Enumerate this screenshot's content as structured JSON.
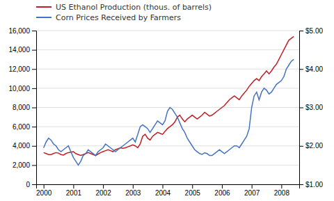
{
  "chart_data": {
    "type": "line",
    "x": [
      2000.0,
      2000.083,
      2000.167,
      2000.25,
      2000.333,
      2000.417,
      2000.5,
      2000.583,
      2000.667,
      2000.75,
      2000.833,
      2000.917,
      2001.0,
      2001.083,
      2001.167,
      2001.25,
      2001.333,
      2001.417,
      2001.5,
      2001.583,
      2001.667,
      2001.75,
      2001.833,
      2001.917,
      2002.0,
      2002.083,
      2002.167,
      2002.25,
      2002.333,
      2002.417,
      2002.5,
      2002.583,
      2002.667,
      2002.75,
      2002.833,
      2002.917,
      2003.0,
      2003.083,
      2003.167,
      2003.25,
      2003.333,
      2003.417,
      2003.5,
      2003.583,
      2003.667,
      2003.75,
      2003.833,
      2003.917,
      2004.0,
      2004.083,
      2004.167,
      2004.25,
      2004.333,
      2004.417,
      2004.5,
      2004.583,
      2004.667,
      2004.75,
      2004.833,
      2004.917,
      2005.0,
      2005.083,
      2005.167,
      2005.25,
      2005.333,
      2005.417,
      2005.5,
      2005.583,
      2005.667,
      2005.75,
      2005.833,
      2005.917,
      2006.0,
      2006.083,
      2006.167,
      2006.25,
      2006.333,
      2006.417,
      2006.5,
      2006.583,
      2006.667,
      2006.75,
      2006.833,
      2006.917,
      2007.0,
      2007.083,
      2007.167,
      2007.25,
      2007.333,
      2007.417,
      2007.5,
      2007.583,
      2007.667,
      2007.75,
      2007.833,
      2007.917,
      2008.0,
      2008.083,
      2008.167,
      2008.25,
      2008.333,
      2008.417
    ],
    "series": [
      {
        "name": "US Ethanol Production (thous. of barrels)",
        "color": "#bf2026",
        "values": [
          3300,
          3200,
          3100,
          3100,
          3200,
          3300,
          3250,
          3100,
          3050,
          3200,
          3300,
          3350,
          3400,
          3200,
          3100,
          3000,
          3100,
          3200,
          3300,
          3200,
          3100,
          3000,
          3150,
          3300,
          3400,
          3500,
          3600,
          3500,
          3400,
          3600,
          3700,
          3800,
          3750,
          3800,
          3900,
          4000,
          4100,
          4000,
          3800,
          4200,
          5000,
          5200,
          4800,
          4600,
          5000,
          5200,
          5400,
          5300,
          5200,
          5500,
          5800,
          6000,
          6200,
          6500,
          7000,
          7200,
          6800,
          6500,
          6800,
          7000,
          7200,
          7000,
          6800,
          7000,
          7200,
          7500,
          7300,
          7100,
          7200,
          7400,
          7600,
          7800,
          8000,
          8200,
          8500,
          8800,
          9000,
          9200,
          9000,
          8800,
          9200,
          9500,
          9800,
          10200,
          10500,
          10800,
          11000,
          10800,
          11200,
          11500,
          11800,
          11500,
          11800,
          12200,
          12500,
          13000,
          13500,
          14000,
          14500,
          15000,
          15200,
          15400
        ]
      },
      {
        "name": "Corn Prices  Received by Farmers",
        "color": "#4472c4",
        "axis": "y2",
        "values": [
          1.95,
          2.1,
          2.2,
          2.15,
          2.05,
          2.0,
          1.9,
          1.85,
          1.9,
          1.95,
          2.0,
          1.85,
          1.7,
          1.6,
          1.5,
          1.6,
          1.75,
          1.8,
          1.9,
          1.85,
          1.8,
          1.75,
          1.85,
          1.9,
          1.95,
          2.05,
          2.0,
          1.95,
          1.9,
          1.85,
          1.9,
          1.95,
          2.0,
          2.05,
          2.1,
          2.15,
          2.2,
          2.1,
          2.3,
          2.5,
          2.55,
          2.5,
          2.45,
          2.35,
          2.45,
          2.55,
          2.65,
          2.6,
          2.55,
          2.65,
          2.9,
          3.0,
          2.95,
          2.85,
          2.75,
          2.6,
          2.45,
          2.35,
          2.2,
          2.1,
          2.0,
          1.9,
          1.85,
          1.8,
          1.78,
          1.82,
          1.8,
          1.75,
          1.75,
          1.8,
          1.85,
          1.9,
          1.85,
          1.8,
          1.85,
          1.9,
          1.95,
          2.0,
          2.0,
          1.95,
          2.05,
          2.15,
          2.25,
          2.45,
          3.0,
          3.3,
          3.4,
          3.2,
          3.4,
          3.5,
          3.45,
          3.35,
          3.4,
          3.5,
          3.6,
          3.65,
          3.7,
          3.8,
          4.0,
          4.1,
          4.2,
          4.25
        ]
      }
    ],
    "xlim": [
      1999.75,
      2008.6
    ],
    "xticks": [
      2000,
      2001,
      2002,
      2003,
      2004,
      2005,
      2006,
      2007,
      2008
    ],
    "ylim": [
      0,
      16000
    ],
    "yticks": [
      0,
      {
        "value": 2000,
        "label": "2,000"
      },
      {
        "value": 4000,
        "label": "4,000"
      },
      {
        "value": 6000,
        "label": "6,000"
      },
      {
        "value": 8000,
        "label": "8,000"
      },
      {
        "value": 10000,
        "label": "10,000"
      },
      {
        "value": 12000,
        "label": "12,000"
      },
      {
        "value": 14000,
        "label": "14,000"
      },
      {
        "value": 16000,
        "label": "16,000"
      }
    ],
    "y2lim": [
      1.0,
      5.0
    ],
    "y2ticks": [
      {
        "value": 1.0,
        "label": "$1.00"
      },
      {
        "value": 2.0,
        "label": "$2.00"
      },
      {
        "value": 3.0,
        "label": "$3.00"
      },
      {
        "value": 4.0,
        "label": "$4.00"
      },
      {
        "value": 5.0,
        "label": "$5.00"
      }
    ],
    "grid": true,
    "legend": "upper left"
  }
}
